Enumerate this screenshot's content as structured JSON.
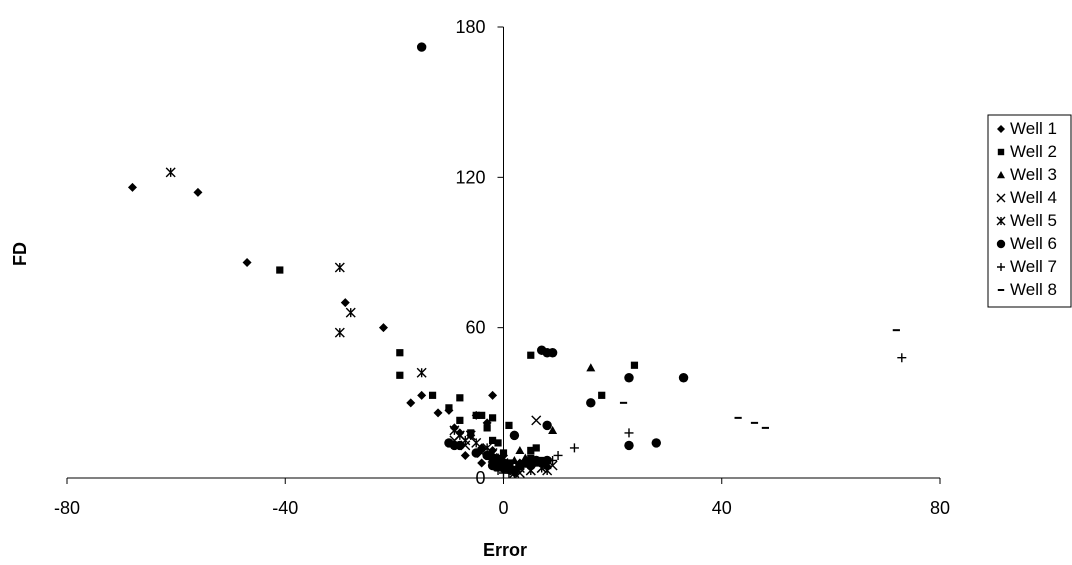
{
  "chart_data": {
    "type": "scatter",
    "title": "",
    "xlabel": "Error",
    "ylabel": "FD",
    "xlim": [
      -80,
      80
    ],
    "ylim": [
      0,
      180
    ],
    "xticks": [
      -80,
      -40,
      0,
      40,
      80
    ],
    "yticks": [
      0,
      60,
      120,
      180
    ],
    "x_tick_labels": [
      "-80",
      "-40",
      "0",
      "40",
      "80"
    ],
    "y_tick_labels": [
      "0",
      "60",
      "120",
      "180"
    ],
    "grid": false,
    "legend_position": "right",
    "series": [
      {
        "name": "Well 1",
        "marker": "diamond",
        "points": [
          [
            -68,
            116
          ],
          [
            -56,
            114
          ],
          [
            -47,
            86
          ],
          [
            -29,
            70
          ],
          [
            -22,
            60
          ],
          [
            -17,
            30
          ],
          [
            -15,
            33
          ],
          [
            -12,
            26
          ],
          [
            -10,
            27
          ],
          [
            -9,
            20
          ],
          [
            -8,
            18
          ],
          [
            -6,
            17
          ],
          [
            -5,
            25
          ],
          [
            -4,
            12
          ],
          [
            -3,
            22
          ],
          [
            -2,
            33
          ],
          [
            -2,
            11
          ],
          [
            -1,
            8
          ],
          [
            0,
            5
          ],
          [
            0,
            9
          ],
          [
            1,
            3
          ],
          [
            2,
            2
          ],
          [
            3,
            6
          ],
          [
            -7,
            9
          ],
          [
            -4,
            6
          ]
        ]
      },
      {
        "name": "Well 2",
        "marker": "square",
        "points": [
          [
            -41,
            83
          ],
          [
            -19,
            50
          ],
          [
            -19,
            41
          ],
          [
            -13,
            33
          ],
          [
            -10,
            28
          ],
          [
            -8,
            32
          ],
          [
            -8,
            23
          ],
          [
            -6,
            18
          ],
          [
            -5,
            25
          ],
          [
            -4,
            25
          ],
          [
            -3,
            20
          ],
          [
            -2,
            15
          ],
          [
            -2,
            24
          ],
          [
            -1,
            14
          ],
          [
            0,
            10
          ],
          [
            1,
            21
          ],
          [
            1,
            6
          ],
          [
            3,
            5
          ],
          [
            5,
            8
          ],
          [
            5,
            11
          ],
          [
            5,
            49
          ],
          [
            6,
            12
          ],
          [
            7,
            7
          ],
          [
            18,
            33
          ],
          [
            24,
            45
          ],
          [
            -1,
            4
          ],
          [
            2,
            3
          ]
        ]
      },
      {
        "name": "Well 3",
        "marker": "triangle",
        "points": [
          [
            16,
            44
          ],
          [
            9,
            19
          ],
          [
            3,
            11
          ],
          [
            4,
            8
          ],
          [
            6,
            6
          ],
          [
            8,
            5
          ],
          [
            1,
            4
          ],
          [
            2,
            7
          ]
        ]
      },
      {
        "name": "Well 4",
        "marker": "x",
        "points": [
          [
            6,
            23
          ],
          [
            -9,
            15
          ],
          [
            -7,
            13
          ],
          [
            -4,
            10
          ],
          [
            -2,
            8
          ],
          [
            -1,
            6
          ],
          [
            1,
            4
          ],
          [
            2,
            3
          ],
          [
            4,
            5
          ],
          [
            7,
            4
          ],
          [
            8,
            6
          ],
          [
            9,
            5
          ],
          [
            3,
            2
          ],
          [
            5,
            3
          ]
        ]
      },
      {
        "name": "Well 5",
        "marker": "asterisk",
        "points": [
          [
            -61,
            122
          ],
          [
            -30,
            84
          ],
          [
            -28,
            66
          ],
          [
            -30,
            58
          ],
          [
            -15,
            42
          ],
          [
            -9,
            19
          ],
          [
            -8,
            17
          ],
          [
            -6,
            17
          ],
          [
            -5,
            14
          ],
          [
            -3,
            12
          ],
          [
            -2,
            10
          ],
          [
            -1,
            8
          ],
          [
            0,
            6
          ],
          [
            1,
            5
          ],
          [
            3,
            4
          ],
          [
            5,
            3
          ],
          [
            7,
            4
          ],
          [
            8,
            3
          ],
          [
            -7,
            15
          ],
          [
            2,
            2
          ]
        ]
      },
      {
        "name": "Well 6",
        "marker": "circle",
        "points": [
          [
            -15,
            172
          ],
          [
            7,
            51
          ],
          [
            8,
            50
          ],
          [
            9,
            50
          ],
          [
            33,
            40
          ],
          [
            23,
            40
          ],
          [
            16,
            30
          ],
          [
            8,
            21
          ],
          [
            28,
            14
          ],
          [
            23,
            13
          ],
          [
            -10,
            14
          ],
          [
            -9,
            13
          ],
          [
            -8,
            13
          ],
          [
            -5,
            10
          ],
          [
            -3,
            9
          ],
          [
            -2,
            8
          ],
          [
            -1,
            7
          ],
          [
            0,
            6
          ],
          [
            1,
            5
          ],
          [
            2,
            17
          ],
          [
            3,
            5
          ],
          [
            4,
            6
          ],
          [
            5,
            5
          ],
          [
            6,
            7
          ],
          [
            7,
            6
          ],
          [
            8,
            7
          ],
          [
            -1,
            5
          ],
          [
            0,
            4
          ],
          [
            2,
            3
          ],
          [
            -2,
            5
          ]
        ]
      },
      {
        "name": "Well 7",
        "marker": "plus",
        "points": [
          [
            73,
            48
          ],
          [
            23,
            18
          ],
          [
            13,
            12
          ],
          [
            10,
            9
          ],
          [
            9,
            7
          ],
          [
            7,
            6
          ],
          [
            5,
            5
          ],
          [
            3,
            4
          ],
          [
            2,
            3
          ],
          [
            1,
            2
          ],
          [
            0,
            2
          ],
          [
            -1,
            3
          ]
        ]
      },
      {
        "name": "Well 8",
        "marker": "dash",
        "points": [
          [
            72,
            59
          ],
          [
            22,
            30
          ],
          [
            43,
            24
          ],
          [
            46,
            22
          ],
          [
            48,
            20
          ]
        ]
      }
    ]
  }
}
